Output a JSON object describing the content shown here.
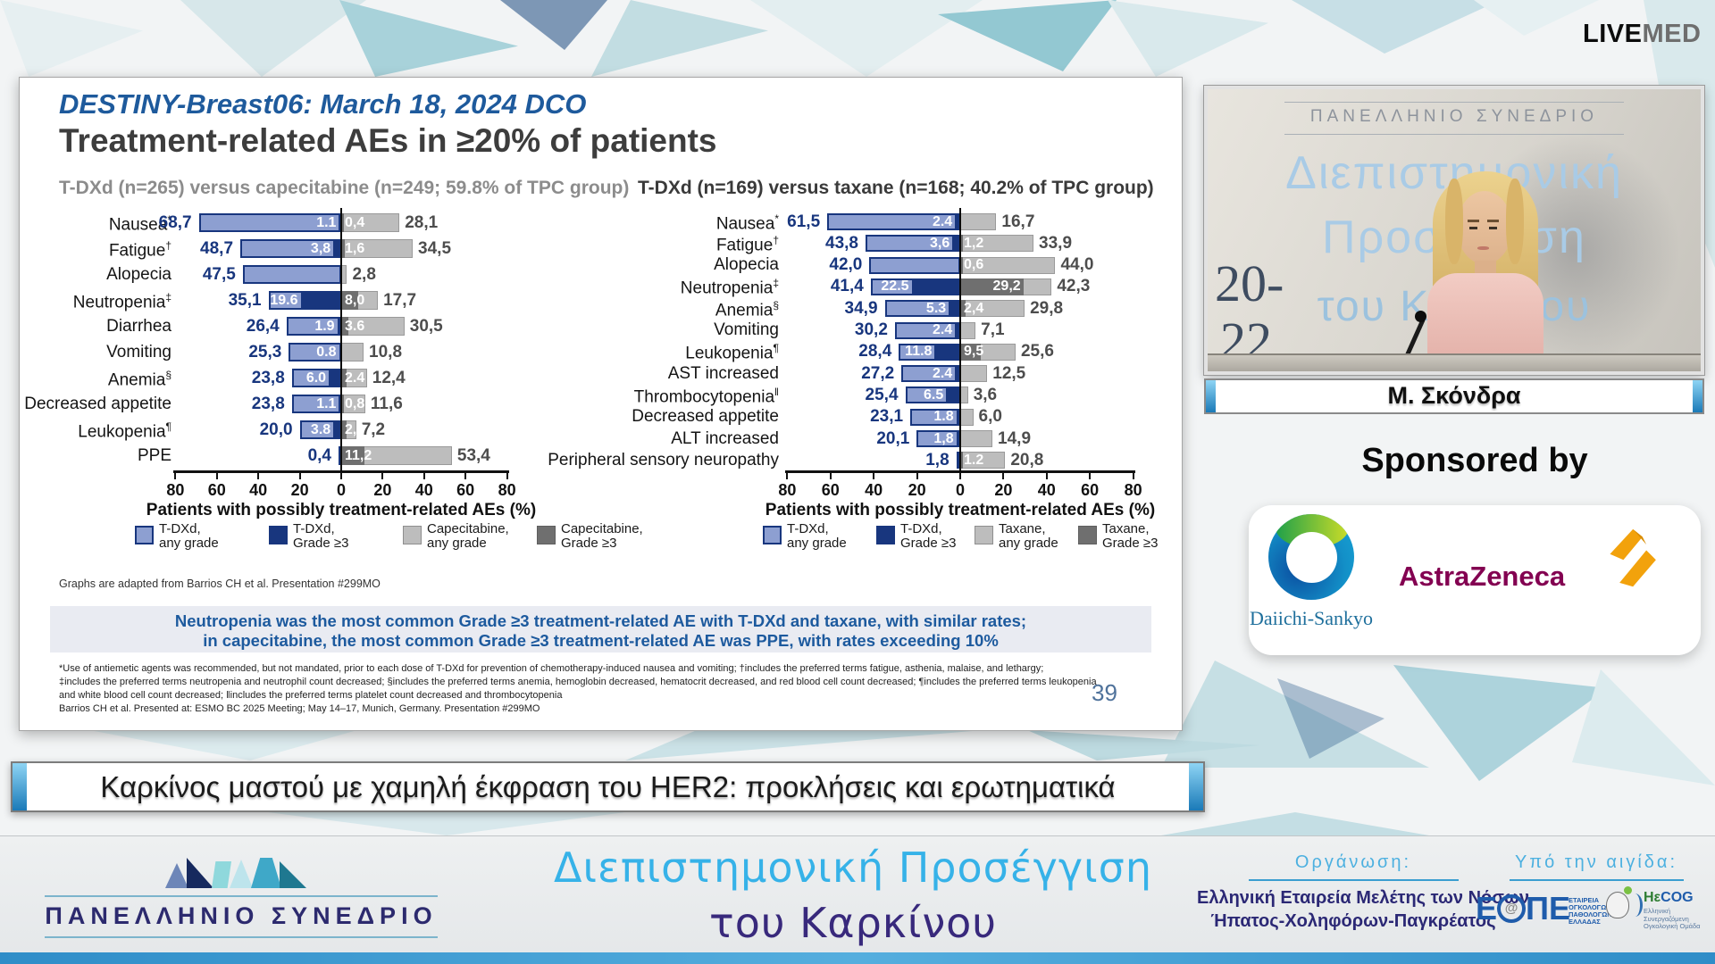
{
  "header": {
    "livemed_live": "LIVE",
    "livemed_med": "MED"
  },
  "slide": {
    "kicker": "DESTINY-Breast06: March 18, 2024 DCO",
    "title": "Treatment-related AEs in ≥20% of patients",
    "adapted_note": "Graphs are adapted from Barrios CH et al. Presentation #299MO",
    "highlight": [
      "Neutropenia was the most common Grade ≥3 treatment-related AE with T-DXd and taxane, with similar rates;",
      "in capecitabine, the most common Grade ≥3 treatment-related AE was PPE, with rates exceeding 10%"
    ],
    "footnotes": [
      "*Use of antiemetic agents was recommended, but not mandated, prior to each dose of T-DXd for prevention of chemotherapy-induced nausea and vomiting; †includes the preferred terms fatigue, asthenia, malaise, and lethargy;",
      "‡includes the preferred terms neutropenia and neutrophil count decreased; §includes the preferred terms anemia, hemoglobin decreased, hematocrit decreased, and red blood cell count decreased; ¶includes the preferred terms leukopenia",
      "and white blood cell count decreased; ‖includes the preferred terms platelet count decreased and thrombocytopenia",
      "Barrios CH et al. Presented at: ESMO BC 2025 Meeting; May 14–17, Munich, Germany. Presentation #299MO"
    ],
    "page_number": "39"
  },
  "chart_data": [
    {
      "type": "bar",
      "variant": "tornado",
      "title": "T-DXd (n=265) versus capecitabine (n=249; 59.8% of TPC group)",
      "xlabel": "Patients with possibly treatment-related AEs (%)",
      "axis_ticks": [
        "80",
        "60",
        "40",
        "20",
        "0",
        "20",
        "40",
        "60",
        "80"
      ],
      "x_max_each_side": 80,
      "colors": {
        "any": "#8d9fd1",
        "g3": "#18367e",
        "comp_any": "#bdbdbd",
        "comp_g3": "#6f6f6f"
      },
      "legend": [
        {
          "swatch": "any",
          "line1": "T-DXd,",
          "line2": "any grade"
        },
        {
          "swatch": "g3",
          "line1": "T-DXd,",
          "line2": "Grade ≥3"
        },
        {
          "swatch": "comp_any",
          "line1": "Capecitabine,",
          "line2": "any grade"
        },
        {
          "swatch": "comp_g3",
          "line1": "Capecitabine,",
          "line2": "Grade ≥3"
        }
      ],
      "rows": [
        {
          "label": "Nausea",
          "sup": "*",
          "tdxd_any": "68,7",
          "tdxd_g3": "1.1",
          "comp_g3": "0,4",
          "comp_any": "28,1"
        },
        {
          "label": "Fatigue",
          "sup": "†",
          "tdxd_any": "48,7",
          "tdxd_g3": "3,8",
          "comp_g3": "1,6",
          "comp_any": "34,5"
        },
        {
          "label": "Alopecia",
          "sup": null,
          "tdxd_any": "47,5",
          "tdxd_g3": null,
          "comp_g3": null,
          "comp_any": "2,8"
        },
        {
          "label": "Neutropenia",
          "sup": "‡",
          "tdxd_any": "35,1",
          "tdxd_g3": "19.6",
          "comp_g3": "8,0",
          "comp_any": "17,7"
        },
        {
          "label": "Diarrhea",
          "sup": null,
          "tdxd_any": "26,4",
          "tdxd_g3": "1.9",
          "comp_g3": "3.6",
          "comp_any": "30,5"
        },
        {
          "label": "Vomiting",
          "sup": null,
          "tdxd_any": "25,3",
          "tdxd_g3": "0.8",
          "comp_g3": null,
          "comp_any": "10,8"
        },
        {
          "label": "Anemia",
          "sup": "§",
          "tdxd_any": "23,8",
          "tdxd_g3": "6.0",
          "comp_g3": "2.4",
          "comp_any": "12,4"
        },
        {
          "label": "Decreased appetite",
          "sup": null,
          "tdxd_any": "23,8",
          "tdxd_g3": "1.1",
          "comp_g3": "0,8",
          "comp_any": "11,6"
        },
        {
          "label": "Leukopenia",
          "sup": "¶",
          "tdxd_any": "20,0",
          "tdxd_g3": "3.8",
          "comp_g3": "2,8",
          "comp_any": "7,2"
        },
        {
          "label": "PPE",
          "sup": null,
          "tdxd_any": "0,4",
          "tdxd_g3": null,
          "comp_g3": "11,2",
          "comp_any": "53,4"
        }
      ]
    },
    {
      "type": "bar",
      "variant": "tornado",
      "title": "T-DXd (n=169) versus taxane (n=168; 40.2% of TPC group)",
      "xlabel": "Patients with possibly treatment-related AEs (%)",
      "axis_ticks": [
        "80",
        "60",
        "40",
        "20",
        "0",
        "20",
        "40",
        "60",
        "80"
      ],
      "x_max_each_side": 80,
      "colors": {
        "any": "#8d9fd1",
        "g3": "#18367e",
        "comp_any": "#bdbdbd",
        "comp_g3": "#6f6f6f"
      },
      "legend": [
        {
          "swatch": "any",
          "line1": "T-DXd,",
          "line2": "any grade"
        },
        {
          "swatch": "g3",
          "line1": "T-DXd,",
          "line2": "Grade ≥3"
        },
        {
          "swatch": "comp_any",
          "line1": "Taxane,",
          "line2": "any grade"
        },
        {
          "swatch": "comp_g3",
          "line1": "Taxane,",
          "line2": "Grade ≥3"
        }
      ],
      "rows": [
        {
          "label": "Nausea",
          "sup": "*",
          "tdxd_any": "61,5",
          "tdxd_g3": "2.4",
          "comp_g3": null,
          "comp_any": "16,7"
        },
        {
          "label": "Fatigue",
          "sup": "†",
          "tdxd_any": "43,8",
          "tdxd_g3": "3,6",
          "comp_g3": "1,2",
          "comp_any": "33,9"
        },
        {
          "label": "Alopecia",
          "sup": null,
          "tdxd_any": "42,0",
          "tdxd_g3": null,
          "comp_g3": "0,6",
          "comp_any": "44,0"
        },
        {
          "label": "Neutropenia",
          "sup": "‡",
          "tdxd_any": "41,4",
          "tdxd_g3": "22.5",
          "comp_g3": "29,2",
          "comp_any": "42,3"
        },
        {
          "label": "Anemia",
          "sup": "§",
          "tdxd_any": "34,9",
          "tdxd_g3": "5.3",
          "comp_g3": "2,4",
          "comp_any": "29,8"
        },
        {
          "label": "Vomiting",
          "sup": null,
          "tdxd_any": "30,2",
          "tdxd_g3": "2.4",
          "comp_g3": null,
          "comp_any": "7,1"
        },
        {
          "label": "Leukopenia",
          "sup": "¶",
          "tdxd_any": "28,4",
          "tdxd_g3": "11.8",
          "comp_g3": "9,5",
          "comp_any": "25,6"
        },
        {
          "label": "AST increased",
          "sup": null,
          "tdxd_any": "27,2",
          "tdxd_g3": "2.4",
          "comp_g3": null,
          "comp_any": "12,5"
        },
        {
          "label": "Thrombocytopenia",
          "sup": "‖",
          "tdxd_any": "25,4",
          "tdxd_g3": "6.5",
          "comp_g3": null,
          "comp_any": "3,6"
        },
        {
          "label": "Decreased appetite",
          "sup": null,
          "tdxd_any": "23,1",
          "tdxd_g3": "1.8",
          "comp_g3": null,
          "comp_any": "6,0"
        },
        {
          "label": "ALT increased",
          "sup": null,
          "tdxd_any": "20,1",
          "tdxd_g3": "1,8",
          "comp_g3": null,
          "comp_any": "14,9"
        },
        {
          "label": "Peripheral sensory neuropathy",
          "sup": null,
          "tdxd_any": "1,8",
          "tdxd_g3": null,
          "comp_g3": "1.2",
          "comp_any": "20,8"
        }
      ]
    }
  ],
  "video": {
    "congress": "ΠΑΝΕΛΛΗΝΙΟ ΣΥΝΕΔΡΙΟ",
    "title_line1": "Διεπιστημονική",
    "title_line2": "Προσέγγιση",
    "title_line3": "του Καρκίνου",
    "dates_line1": "20-",
    "dates_line2": "22",
    "speaker_name": "Μ. Σκόνδρα"
  },
  "sponsor": {
    "label": "Sponsored by",
    "daiichi_sankyo": "Daiichi-Sankyo",
    "astrazeneca": "AstraZeneca"
  },
  "banner": {
    "title": "Καρκίνος μαστού με χαμηλή έκφραση του HER2: προκλήσεις και ερωτηματικά"
  },
  "footer": {
    "congress": "ΠΑΝΕΛΛΗΝΙΟ ΣΥΝΕΔΡΙΟ",
    "title_line1": "Διεπιστημονική Προσέγγιση",
    "title_line2": "του Καρκίνου",
    "organization_label": "Οργάνωση:",
    "organization_lines": [
      "Ελληνική Εταιρεία Μελέτης των Νόσων",
      "Ήπατος-Χοληφόρων-Παγκρέατος"
    ],
    "aegis_label": "Υπό την αιγίδα:",
    "eope": {
      "prefix": "Ε",
      "suffix": "ΠΕ",
      "side_lines": [
        "ΕΤΑΙΡΕΙΑ",
        "ΟΓΚΟΛΟΓΩΝ",
        "ΠΑΘΟΛΟΓΩΝ",
        "ΕΛΛΑΔΑΣ"
      ]
    },
    "hecog": {
      "name_part1": "Hε",
      "name_part2": "COG",
      "lines": [
        "Ελληνική",
        "Συνεργαζόμενη",
        "Ογκολογική Ομάδα"
      ]
    }
  }
}
